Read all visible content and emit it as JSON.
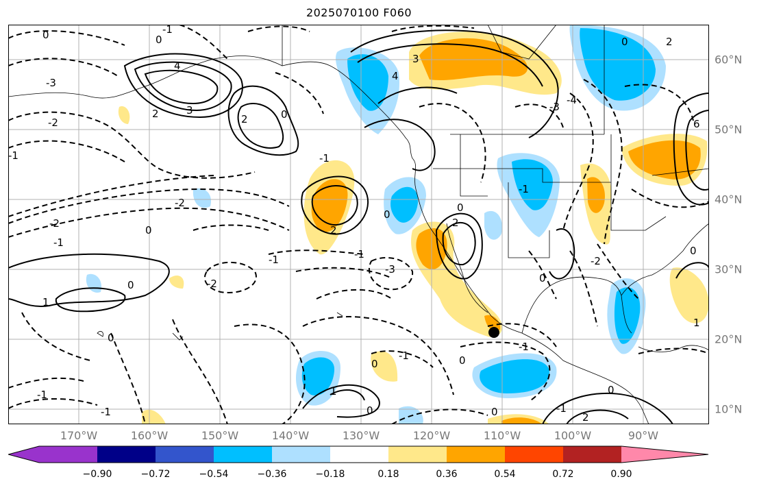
{
  "title": "2025070100 F060",
  "lon_labels": [
    "170°W",
    "160°W",
    "150°W",
    "140°W",
    "130°W",
    "120°W",
    "110°W",
    "100°W",
    "90°W"
  ],
  "lat_labels": [
    "60°N",
    "50°N",
    "40°N",
    "30°N",
    "20°N",
    "10°N"
  ],
  "colorbar": {
    "colors": [
      "#9933cc",
      "#000088",
      "#3355cc",
      "#00bfff",
      "#aee0ff",
      "#ffffff",
      "#ffe88a",
      "#ffa500",
      "#ff4500",
      "#b22222",
      "#ff88aa"
    ],
    "ticks": [
      "−0.90",
      "−0.72",
      "−0.54",
      "−0.36",
      "−0.18",
      "0.18",
      "0.36",
      "0.54",
      "0.72",
      "0.90"
    ]
  },
  "contour_labels": [
    "0",
    "-1",
    "-2",
    "-3",
    "1",
    "2",
    "3",
    "4",
    "6"
  ],
  "marker": "storm-center-dot"
}
